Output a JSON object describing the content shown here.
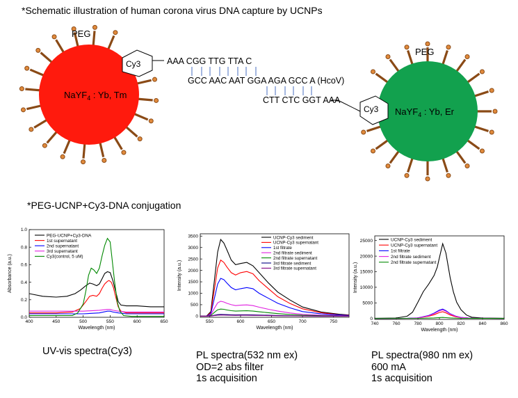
{
  "header": {
    "schematic_title": "*Schematic illustration of human corona virus DNA capture by UCNPs",
    "conjugation_title": "*PEG-UCNP+Cy3-DNA conjugation"
  },
  "schematic": {
    "left_particle": {
      "peg": "PEG",
      "cy3": "Cy3",
      "core_main": "NaYF",
      "core_sub": "4",
      "core_rest": " : Yb, Tm",
      "color": "#ff1a0d"
    },
    "right_particle": {
      "peg": "PEG",
      "cy3": "Cy3",
      "core_main": "NaYF",
      "core_sub": "4",
      "core_rest": " : Yb, Er",
      "color": "#12a14e"
    },
    "dna": {
      "top_strand": "AAA CGG TTG TTA C",
      "target_strand": "GCC AAC AAT GGA AGA GCC A (HcoV)",
      "bottom_strand": "CTT CTC GGT AAA"
    },
    "linker_color": "#8a4a16",
    "tip_color": "#e08a3c"
  },
  "charts": [
    {
      "id": "uv",
      "xlabel": "Wavelength (nm)",
      "ylabel": "Absorbance (a.u.)",
      "xticks": [
        400,
        450,
        500,
        550,
        600,
        650
      ],
      "yticks": [
        "0.0",
        "0.2",
        "0.4",
        "0.6",
        "0.8",
        "1.0"
      ],
      "legend": [
        "PEG-UCNP+Cy3-DNA",
        "1st supernatant",
        "2nd supernatant",
        "3rd supernatant",
        "Cy3(control, 5 uM)"
      ],
      "caption": [
        "UV-vis spectra(Cy3)"
      ]
    },
    {
      "id": "pl532",
      "xlabel": "Wavelength (nm)",
      "ylabel": "Intensity (a.u.)",
      "xticks": [
        550,
        600,
        650,
        700,
        750
      ],
      "yticks": [
        "0",
        "500",
        "1000",
        "1500",
        "2000",
        "2500",
        "3000",
        "3500"
      ],
      "legend": [
        "UCNP-Cy3 sediment",
        "UCNP-Cy3 supernatant",
        "1st filtrate",
        "2nd filtrate sediment",
        "2nd filtrate supernatant",
        "3rd filtrate sediment",
        "3rd filtrate supernatant"
      ],
      "caption": [
        "PL spectra(532 nm ex)",
        "OD=2 abs filter",
        "1s acquisition"
      ]
    },
    {
      "id": "pl980",
      "xlabel": "Wavelength (nm)",
      "ylabel": "Intensity (a.u.)",
      "xticks": [
        740,
        760,
        780,
        800,
        820,
        840,
        860
      ],
      "yticks": [
        "0",
        "5000",
        "10000",
        "15000",
        "20000",
        "25000"
      ],
      "legend": [
        "UCNP-Cy3 sediment",
        "UCNP-Cy3 supernatant",
        "1st filtrate",
        "2nd filtrate sediment",
        "2nd filtrate supernatant"
      ],
      "caption": [
        "PL spectra(980 nm ex)",
        "600 mA",
        "1s acquisition"
      ]
    }
  ],
  "chart_data": [
    {
      "type": "line",
      "xlabel": "Wavelength (nm)",
      "ylabel": "Absorbance (a.u.)",
      "xlim": [
        400,
        650
      ],
      "ylim": [
        0,
        1.0
      ],
      "series": [
        {
          "name": "PEG-UCNP+Cy3-DNA",
          "color": "#000000",
          "x": [
            400,
            425,
            450,
            470,
            485,
            495,
            505,
            512,
            518,
            525,
            530,
            535,
            540,
            545,
            550,
            555,
            560,
            565,
            570,
            580,
            600,
            625,
            650
          ],
          "y": [
            0.27,
            0.24,
            0.23,
            0.24,
            0.27,
            0.31,
            0.36,
            0.39,
            0.38,
            0.36,
            0.38,
            0.44,
            0.5,
            0.52,
            0.51,
            0.42,
            0.3,
            0.18,
            0.14,
            0.13,
            0.13,
            0.12,
            0.12
          ]
        },
        {
          "name": "1st supernatant",
          "color": "#ff0000",
          "x": [
            400,
            450,
            480,
            495,
            505,
            512,
            518,
            525,
            530,
            535,
            540,
            545,
            548,
            552,
            556,
            560,
            565,
            570,
            580,
            600,
            650
          ],
          "y": [
            0.05,
            0.05,
            0.06,
            0.1,
            0.18,
            0.24,
            0.25,
            0.24,
            0.27,
            0.33,
            0.38,
            0.41,
            0.42,
            0.4,
            0.34,
            0.24,
            0.12,
            0.07,
            0.05,
            0.05,
            0.05
          ]
        },
        {
          "name": "2nd supernatant",
          "color": "#0000ff",
          "x": [
            400,
            500,
            530,
            545,
            550,
            555,
            565,
            580,
            650
          ],
          "y": [
            0.04,
            0.04,
            0.05,
            0.07,
            0.07,
            0.06,
            0.05,
            0.04,
            0.04
          ]
        },
        {
          "name": "3rd supernatant",
          "color": "#e020e0",
          "x": [
            400,
            500,
            530,
            545,
            550,
            555,
            565,
            580,
            650
          ],
          "y": [
            0.07,
            0.07,
            0.08,
            0.09,
            0.09,
            0.08,
            0.07,
            0.06,
            0.06
          ]
        },
        {
          "name": "Cy3(control, 5 uM)",
          "color": "#008800",
          "x": [
            400,
            480,
            490,
            500,
            505,
            510,
            515,
            520,
            525,
            530,
            535,
            540,
            545,
            550,
            553,
            558,
            563,
            568,
            575,
            590,
            620,
            650
          ],
          "y": [
            0.02,
            0.02,
            0.05,
            0.15,
            0.3,
            0.48,
            0.56,
            0.54,
            0.5,
            0.56,
            0.7,
            0.82,
            0.9,
            0.86,
            0.7,
            0.42,
            0.18,
            0.07,
            0.02,
            0.01,
            0.01,
            0.01
          ]
        }
      ]
    },
    {
      "type": "line",
      "xlabel": "Wavelength (nm)",
      "ylabel": "Intensity (a.u.)",
      "xlim": [
        535,
        775
      ],
      "ylim": [
        -50,
        3600
      ],
      "series": [
        {
          "name": "UCNP-Cy3 sediment",
          "color": "#000000",
          "x": [
            535,
            545,
            552,
            558,
            563,
            568,
            573,
            578,
            585,
            592,
            600,
            610,
            620,
            630,
            645,
            660,
            680,
            700,
            730,
            760,
            775
          ],
          "y": [
            0,
            0,
            200,
            1600,
            2800,
            3350,
            3200,
            2900,
            2450,
            2250,
            2300,
            2350,
            2200,
            1900,
            1450,
            1050,
            700,
            400,
            180,
            80,
            50
          ]
        },
        {
          "name": "UCNP-Cy3 supernatant",
          "color": "#ff0000",
          "x": [
            535,
            545,
            552,
            558,
            563,
            568,
            573,
            578,
            585,
            592,
            600,
            610,
            620,
            630,
            645,
            660,
            680,
            700,
            730,
            760,
            775
          ],
          "y": [
            0,
            0,
            150,
            1200,
            2100,
            2450,
            2350,
            2150,
            1900,
            1800,
            1900,
            1950,
            1850,
            1550,
            1200,
            850,
            550,
            320,
            150,
            60,
            40
          ]
        },
        {
          "name": "1st filtrate",
          "color": "#0000ff",
          "x": [
            535,
            545,
            552,
            558,
            563,
            568,
            573,
            578,
            585,
            592,
            600,
            610,
            620,
            630,
            645,
            660,
            680,
            700,
            730,
            760,
            775
          ],
          "y": [
            0,
            0,
            100,
            800,
            1400,
            1650,
            1600,
            1450,
            1250,
            1150,
            1200,
            1250,
            1200,
            1000,
            780,
            560,
            360,
            200,
            100,
            50,
            30
          ]
        },
        {
          "name": "2nd filtrate sediment",
          "color": "#e020e0",
          "x": [
            535,
            545,
            552,
            558,
            563,
            568,
            573,
            578,
            585,
            592,
            600,
            610,
            620,
            630,
            645,
            660,
            680,
            700,
            730,
            760,
            775
          ],
          "y": [
            0,
            0,
            60,
            350,
            580,
            650,
            620,
            560,
            500,
            460,
            480,
            490,
            460,
            390,
            300,
            220,
            140,
            80,
            40,
            20,
            15
          ]
        },
        {
          "name": "2nd filtrate supernatant",
          "color": "#008800",
          "x": [
            535,
            545,
            552,
            558,
            563,
            568,
            573,
            578,
            585,
            592,
            600,
            610,
            620,
            630,
            645,
            660,
            680,
            700,
            730,
            760,
            775
          ],
          "y": [
            0,
            0,
            30,
            170,
            280,
            310,
            300,
            270,
            240,
            220,
            230,
            235,
            220,
            190,
            150,
            110,
            70,
            40,
            20,
            10,
            8
          ]
        },
        {
          "name": "3rd filtrate sediment",
          "color": "#000080",
          "x": [
            535,
            545,
            552,
            558,
            563,
            568,
            573,
            578,
            585,
            592,
            600,
            610,
            620,
            630,
            645,
            660,
            680,
            700,
            730,
            760,
            775
          ],
          "y": [
            0,
            0,
            8,
            40,
            65,
            75,
            72,
            66,
            60,
            56,
            58,
            60,
            56,
            48,
            38,
            28,
            18,
            10,
            5,
            3,
            2
          ]
        },
        {
          "name": "3rd filtrate supernatant",
          "color": "#800080",
          "x": [
            535,
            545,
            552,
            558,
            563,
            568,
            573,
            578,
            585,
            592,
            600,
            610,
            620,
            630,
            645,
            660,
            680,
            700,
            730,
            760,
            775
          ],
          "y": [
            0,
            0,
            5,
            25,
            42,
            48,
            46,
            42,
            38,
            36,
            37,
            38,
            36,
            31,
            24,
            18,
            12,
            7,
            3,
            2,
            1
          ]
        }
      ]
    },
    {
      "type": "line",
      "xlabel": "Wavelength (nm)",
      "ylabel": "Intensity (a.u.)",
      "xlim": [
        740,
        860
      ],
      "ylim": [
        -300,
        26500
      ],
      "series": [
        {
          "name": "UCNP-Cy3 sediment",
          "color": "#000000",
          "x": [
            740,
            760,
            770,
            775,
            780,
            785,
            790,
            795,
            798,
            800,
            803,
            806,
            808,
            810,
            813,
            816,
            820,
            825,
            830,
            840,
            860
          ],
          "y": [
            50,
            150,
            700,
            2000,
            5200,
            8600,
            11000,
            13800,
            16500,
            19500,
            24000,
            21000,
            17000,
            13000,
            8500,
            5200,
            2800,
            1100,
            400,
            120,
            60
          ]
        },
        {
          "name": "UCNP-Cy3 supernatant",
          "color": "#ff0000",
          "x": [
            740,
            770,
            780,
            790,
            795,
            800,
            803,
            806,
            810,
            815,
            820,
            830,
            860
          ],
          "y": [
            0,
            40,
            150,
            700,
            1200,
            1900,
            2150,
            1800,
            1100,
            550,
            250,
            70,
            10
          ]
        },
        {
          "name": "1st filtrate",
          "color": "#0000ff",
          "x": [
            740,
            770,
            780,
            790,
            795,
            800,
            803,
            806,
            810,
            815,
            820,
            830,
            860
          ],
          "y": [
            0,
            50,
            200,
            950,
            1700,
            2700,
            3000,
            2500,
            1500,
            750,
            320,
            90,
            15
          ]
        },
        {
          "name": "2nd filtrate sediment",
          "color": "#e020e0",
          "x": [
            740,
            770,
            780,
            790,
            795,
            800,
            803,
            806,
            810,
            815,
            820,
            830,
            860
          ],
          "y": [
            0,
            45,
            180,
            850,
            1550,
            2450,
            2750,
            2300,
            1400,
            700,
            300,
            80,
            12
          ]
        },
        {
          "name": "2nd filtrate supernatant",
          "color": "#008800",
          "x": [
            740,
            780,
            795,
            800,
            803,
            806,
            810,
            820,
            860
          ],
          "y": [
            0,
            40,
            170,
            280,
            320,
            260,
            160,
            40,
            5
          ]
        }
      ]
    }
  ]
}
